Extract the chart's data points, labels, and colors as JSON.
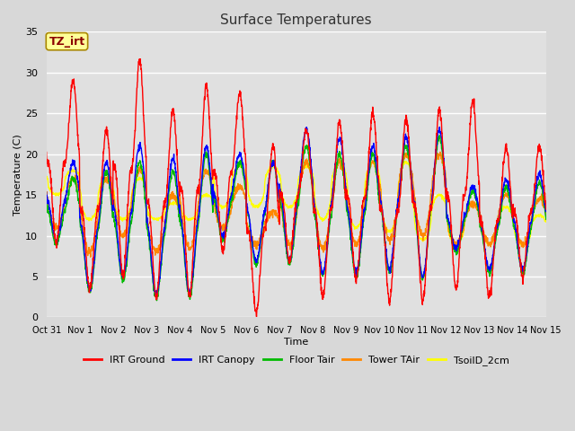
{
  "title": "Surface Temperatures",
  "xlabel": "Time",
  "ylabel": "Temperature (C)",
  "ylim": [
    0,
    35
  ],
  "yticks": [
    0,
    5,
    10,
    15,
    20,
    25,
    30,
    35
  ],
  "x_labels": [
    "Oct 31",
    "Nov 1",
    "Nov 2",
    "Nov 3",
    "Nov 4",
    "Nov 5",
    "Nov 6",
    "Nov 7",
    "Nov 8",
    "Nov 9",
    "Nov 10",
    "Nov 11",
    "Nov 12",
    "Nov 13",
    "Nov 14",
    "Nov 15"
  ],
  "annotation_text": "TZ_irt",
  "annotation_color": "#8B0000",
  "annotation_bg": "#FFFF99",
  "annotation_border": "#AA8800",
  "series": {
    "IRT Ground": {
      "color": "#FF0000",
      "lw": 1.0
    },
    "IRT Canopy": {
      "color": "#0000FF",
      "lw": 1.0
    },
    "Floor Tair": {
      "color": "#00BB00",
      "lw": 1.0
    },
    "Tower TAir": {
      "color": "#FF8800",
      "lw": 1.0
    },
    "TsoilD_2cm": {
      "color": "#FFFF00",
      "lw": 1.0
    }
  },
  "fig_facecolor": "#D8D8D8",
  "plot_facecolor": "#E0E0E0",
  "grid_color": "#FFFFFF",
  "n_days": 15,
  "pts_per_day": 144
}
